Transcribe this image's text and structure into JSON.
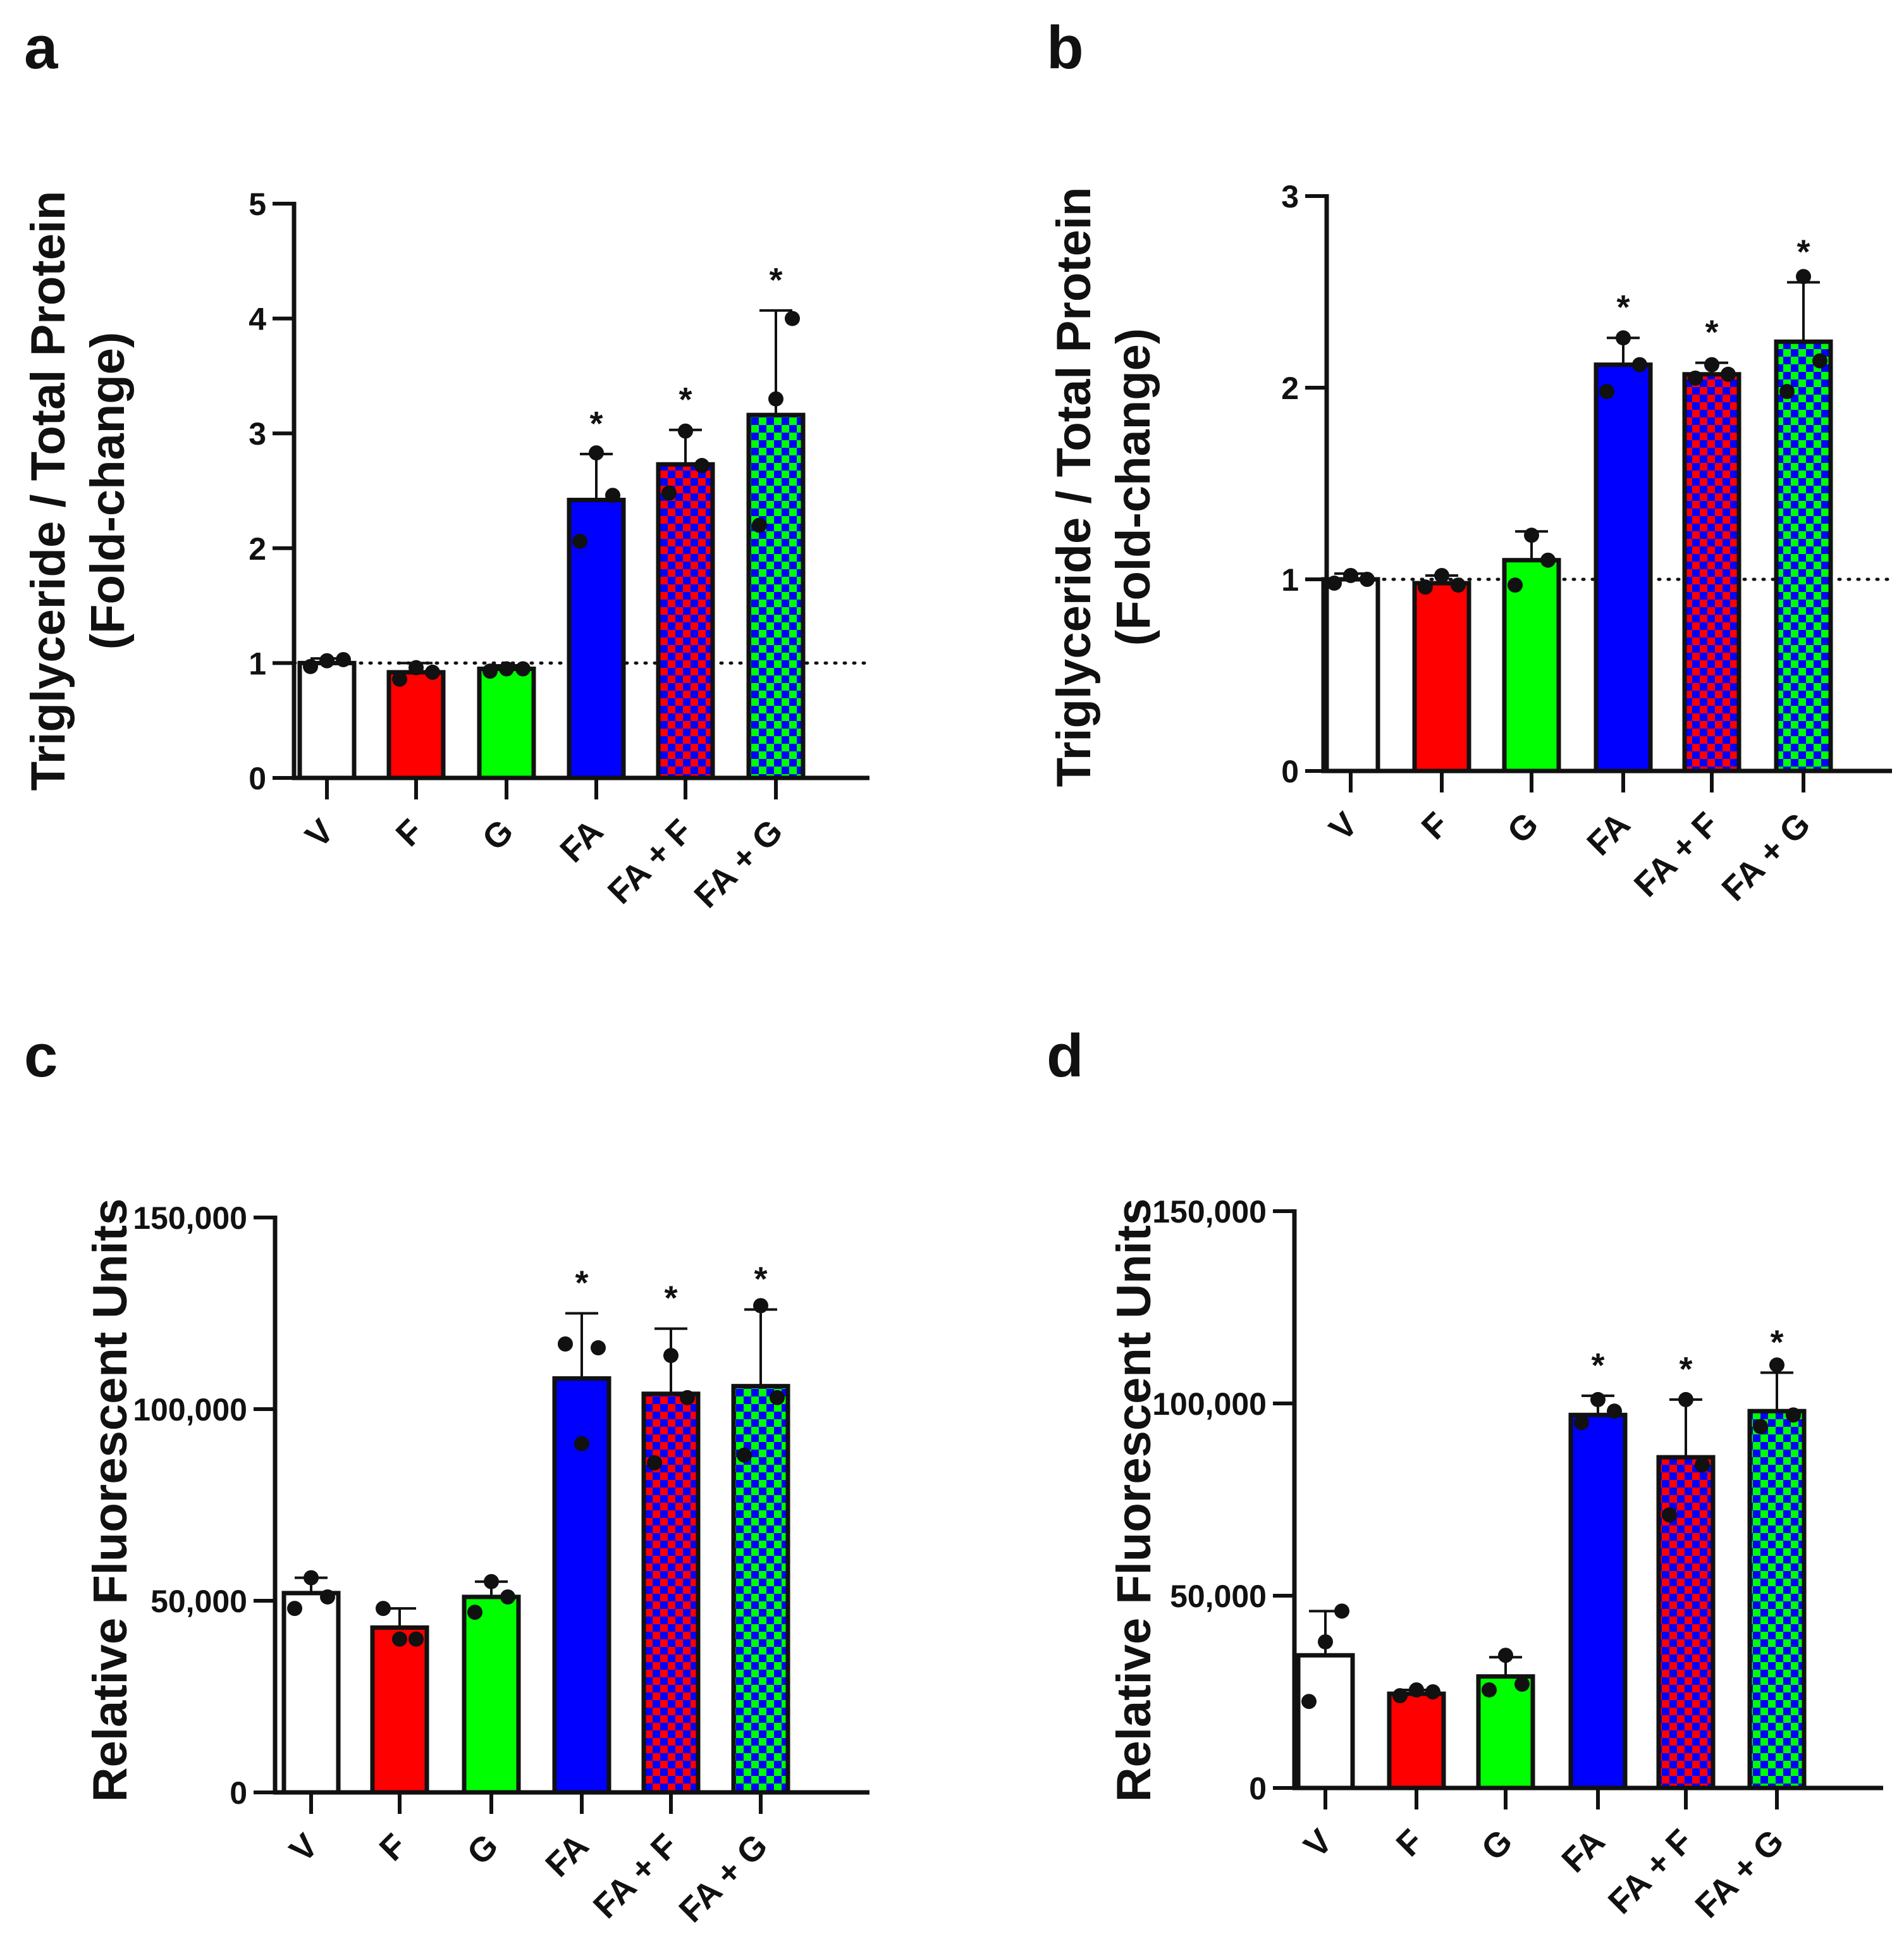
{
  "figure": {
    "colors": {
      "V": "#ffffff",
      "F": "#ff0000",
      "G": "#00ff00",
      "FA": "#0000ff",
      "FA + F": [
        "#ff0000",
        "#0000ff"
      ],
      "FA + G": [
        "#00ff00",
        "#0000ff"
      ],
      "outline": "#111111"
    }
  },
  "chart_data": [
    {
      "panel": "a",
      "type": "bar",
      "categories": [
        "V",
        "F",
        "G",
        "FA",
        "FA + F",
        "FA + G"
      ],
      "values": [
        1.0,
        0.92,
        0.95,
        2.42,
        2.73,
        3.16
      ],
      "error_upper": [
        1.04,
        1.0,
        0.98,
        2.82,
        3.03,
        4.07
      ],
      "points": [
        [
          0.97,
          1.02,
          1.03
        ],
        [
          0.86,
          0.96,
          0.92
        ],
        [
          0.93,
          0.95,
          0.95
        ],
        [
          2.06,
          2.83,
          2.46
        ],
        [
          2.48,
          3.02,
          2.72
        ],
        [
          2.2,
          3.3,
          4.0
        ]
      ],
      "significant": [
        false,
        false,
        false,
        true,
        true,
        true
      ],
      "significance_mark": "*",
      "ylabel_lines": [
        "Triglyceride / Total Protein",
        "(Fold-change)"
      ],
      "xlabel": "",
      "ylim": [
        0,
        5
      ],
      "yticks": [
        0,
        1,
        2,
        3,
        4,
        5
      ],
      "ytick_labels": [
        "0",
        "1",
        "2",
        "3",
        "4",
        "5"
      ],
      "reference_line": 1
    },
    {
      "panel": "b",
      "type": "bar",
      "categories": [
        "V",
        "F",
        "G",
        "FA",
        "FA + F",
        "FA + G"
      ],
      "values": [
        1.0,
        0.98,
        1.1,
        2.12,
        2.07,
        2.24
      ],
      "error_upper": [
        1.03,
        1.02,
        1.25,
        2.26,
        2.13,
        2.55
      ],
      "points": [
        [
          0.98,
          1.02,
          1.0
        ],
        [
          0.96,
          1.02,
          0.97
        ],
        [
          0.97,
          1.23,
          1.1
        ],
        [
          1.98,
          2.26,
          2.12
        ],
        [
          2.05,
          2.12,
          2.07
        ],
        [
          1.98,
          2.58,
          2.14
        ]
      ],
      "significant": [
        false,
        false,
        false,
        true,
        true,
        true
      ],
      "significance_mark": "*",
      "ylabel_lines": [
        "Triglyceride / Total Protein",
        "(Fold-change)"
      ],
      "xlabel": "",
      "ylim": [
        0,
        3
      ],
      "yticks": [
        0,
        1,
        2,
        3
      ],
      "ytick_labels": [
        "0",
        "1",
        "2",
        "3"
      ],
      "reference_line": 1
    },
    {
      "panel": "c",
      "type": "bar",
      "categories": [
        "V",
        "F",
        "G",
        "FA",
        "FA + F",
        "FA + G"
      ],
      "values": [
        52000,
        43000,
        51000,
        108000,
        104000,
        106000
      ],
      "error_upper": [
        56000,
        48000,
        55000,
        125000,
        121000,
        126000
      ],
      "points": [
        [
          48000,
          56000,
          51000
        ],
        [
          48000,
          40000,
          40000
        ],
        [
          47000,
          55000,
          51000
        ],
        [
          117000,
          91000,
          116000
        ],
        [
          86000,
          114000,
          103000
        ],
        [
          88000,
          127000,
          103000
        ]
      ],
      "significant": [
        false,
        false,
        false,
        true,
        true,
        true
      ],
      "significance_mark": "*",
      "ylabel_lines": [
        "Relative Fluorescent Units"
      ],
      "xlabel": "",
      "ylim": [
        0,
        150000
      ],
      "yticks": [
        0,
        50000,
        100000,
        150000
      ],
      "ytick_labels": [
        "0",
        "50,000",
        "100,000",
        "150,000"
      ],
      "reference_line": null
    },
    {
      "panel": "d",
      "type": "bar",
      "categories": [
        "V",
        "F",
        "G",
        "FA",
        "FA + F",
        "FA + G"
      ],
      "values": [
        34500,
        24500,
        29000,
        97000,
        86000,
        98000
      ],
      "error_upper": [
        46000,
        25500,
        34000,
        102000,
        101000,
        108000
      ],
      "points": [
        [
          22500,
          38000,
          46000
        ],
        [
          24000,
          25500,
          25000
        ],
        [
          25500,
          34500,
          27000
        ],
        [
          95000,
          101000,
          98000
        ],
        [
          71000,
          101000,
          84000
        ],
        [
          94000,
          110000,
          97000
        ]
      ],
      "significant": [
        false,
        false,
        false,
        true,
        true,
        true
      ],
      "significance_mark": "*",
      "ylabel_lines": [
        "Relative Fluorescent Units"
      ],
      "xlabel": "",
      "ylim": [
        0,
        150000
      ],
      "yticks": [
        0,
        50000,
        100000,
        150000
      ],
      "ytick_labels": [
        "0",
        "50,000",
        "100,000",
        "150,000"
      ],
      "reference_line": null
    }
  ]
}
